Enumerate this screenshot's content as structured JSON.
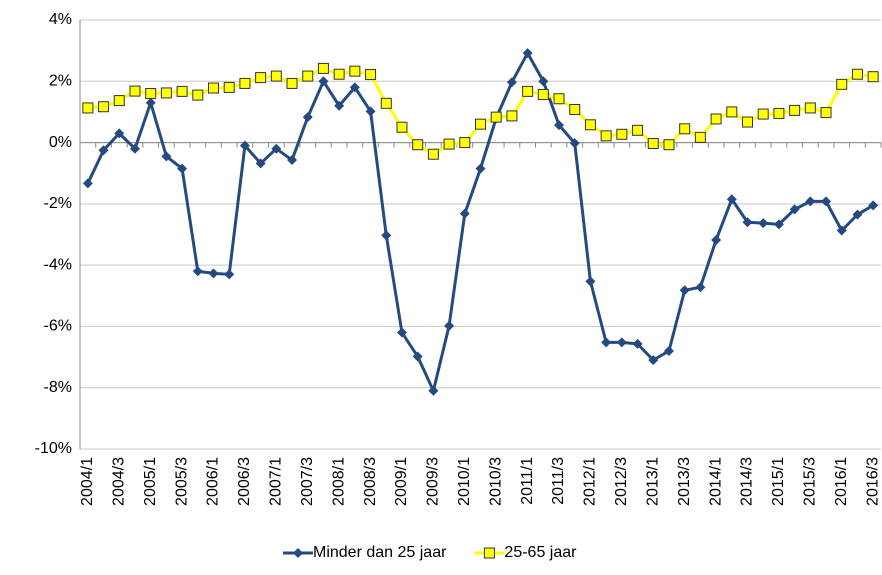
{
  "chart_data": {
    "type": "line",
    "categories": [
      "2004/1",
      null,
      "2004/3",
      null,
      "2005/1",
      null,
      "2005/3",
      null,
      "2006/1",
      null,
      "2006/3",
      null,
      "2007/1",
      null,
      "2007/3",
      null,
      "2008/1",
      null,
      "2008/3",
      null,
      "2009/1",
      null,
      "2009/3",
      null,
      "2010/1",
      null,
      "2010/3",
      null,
      "2011/1",
      null,
      "2011/3",
      null,
      "2012/1",
      null,
      "2012/3",
      null,
      "2013/1",
      null,
      "2013/3",
      null,
      "2014/1",
      null,
      "2014/3",
      null,
      "2015/1",
      null,
      "2015/3",
      null,
      "2016/1",
      null,
      "2016/3"
    ],
    "series": [
      {
        "name": "Minder dan 25 jaar",
        "color": "#254a80",
        "marker": "diamond",
        "values": [
          -1.33,
          -0.25,
          0.3,
          -0.2,
          1.3,
          -0.45,
          -0.85,
          -4.2,
          -4.27,
          -4.3,
          -0.1,
          -0.68,
          -0.2,
          -0.57,
          0.83,
          2.0,
          1.2,
          1.8,
          1.02,
          -3.03,
          -6.2,
          -6.98,
          -8.1,
          -5.98,
          -2.32,
          -0.85,
          0.8,
          1.97,
          2.92,
          2.0,
          0.57,
          -0.02,
          -4.53,
          -6.52,
          -6.52,
          -6.57,
          -7.1,
          -6.8,
          -4.82,
          -4.72,
          -3.18,
          -1.85,
          -2.6,
          -2.63,
          -2.67,
          -2.18,
          -1.92,
          -1.92,
          -2.87,
          -2.35,
          -2.05
        ]
      },
      {
        "name": "25-65 jaar",
        "color": "#ffff00",
        "marker": "square",
        "values": [
          1.13,
          1.17,
          1.37,
          1.68,
          1.6,
          1.62,
          1.67,
          1.55,
          1.78,
          1.8,
          1.93,
          2.12,
          2.17,
          1.93,
          2.17,
          2.42,
          2.23,
          2.33,
          2.22,
          1.28,
          0.5,
          -0.07,
          -0.38,
          -0.05,
          0.0,
          0.6,
          0.83,
          0.87,
          1.67,
          1.57,
          1.43,
          1.08,
          0.58,
          0.22,
          0.27,
          0.4,
          -0.03,
          -0.07,
          0.45,
          0.17,
          0.77,
          1.0,
          0.67,
          0.93,
          0.95,
          1.05,
          1.13,
          0.98,
          1.9,
          2.23,
          2.15
        ]
      }
    ],
    "ylim": [
      -10,
      4
    ],
    "yticks": [
      {
        "value": -10,
        "label": "-10%"
      },
      {
        "value": -8,
        "label": "-8%"
      },
      {
        "value": -6,
        "label": "-6%"
      },
      {
        "value": -4,
        "label": "-4%"
      },
      {
        "value": -2,
        "label": "-2%"
      },
      {
        "value": 0,
        "label": "0%"
      },
      {
        "value": 2,
        "label": "2%"
      },
      {
        "value": 4,
        "label": "4%"
      }
    ],
    "grid": true,
    "legend": "bottom"
  }
}
